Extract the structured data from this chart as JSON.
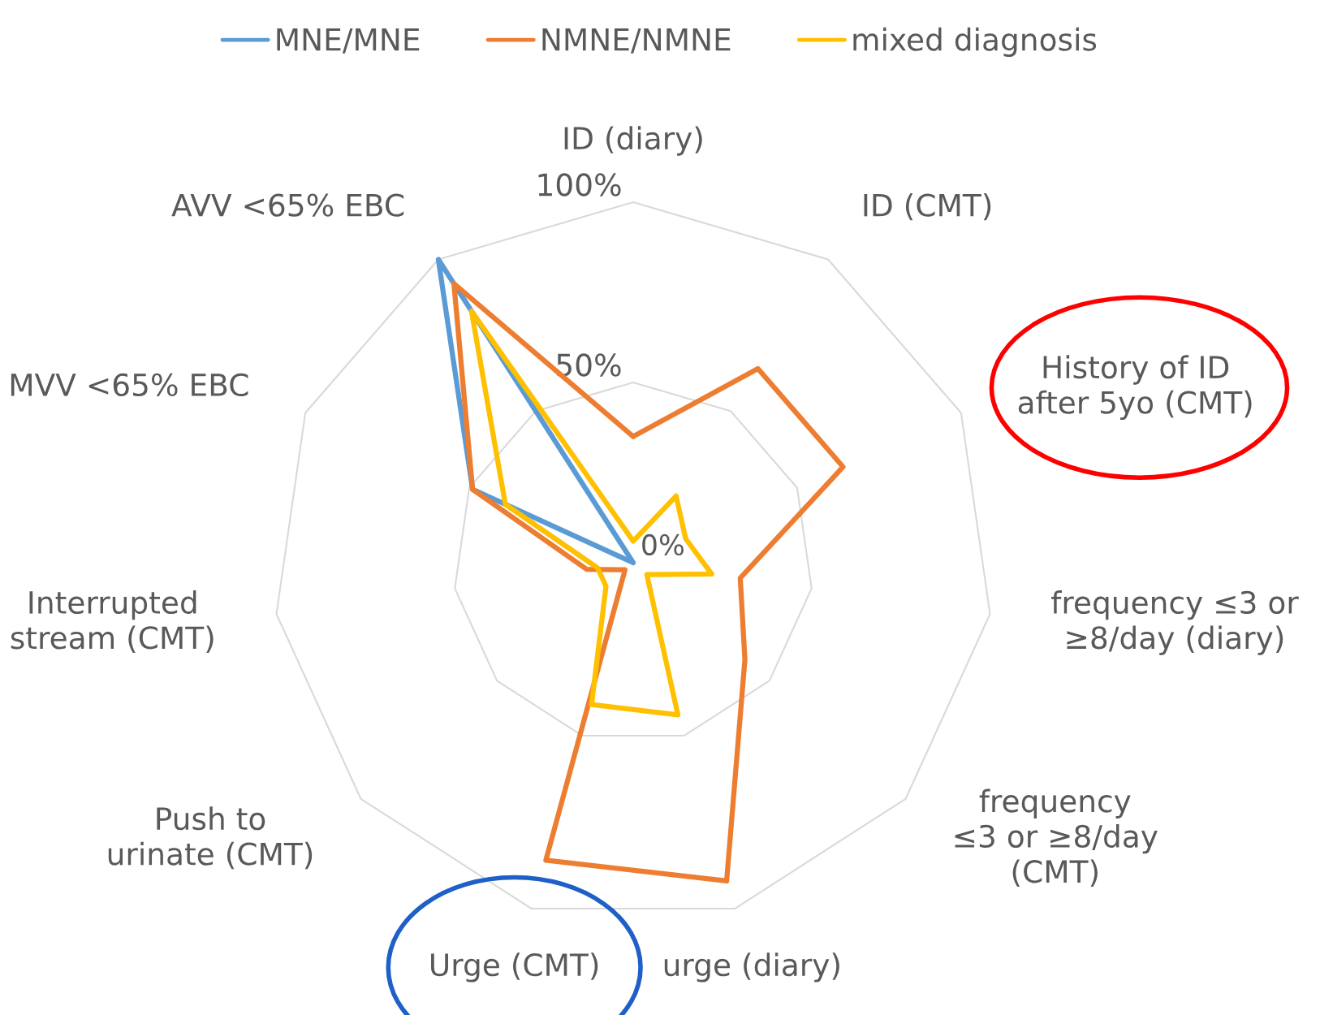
{
  "chart_data": {
    "type": "radar",
    "categories": [
      "ID (diary)",
      "ID (CMT)",
      "History of ID\nafter 5yo (CMT)",
      "frequency ≤3 or\n≥8/day (diary)",
      "frequency\n≤3 or ≥8/day\n(CMT)",
      "urge (diary)",
      "Urge (CMT)",
      "Push to\nurinate (CMT)",
      "Interrupted\nstream (CMT)",
      "MVV <65% EBC",
      "AVV <65% EBC"
    ],
    "series": [
      {
        "name": "MNE/MNE",
        "color": "#5b9bd5",
        "values": [
          0,
          0,
          0,
          0,
          0,
          0,
          0,
          0,
          0,
          49,
          100
        ]
      },
      {
        "name": "NMNE/NMNE",
        "color": "#ed7d31",
        "values": [
          35,
          64,
          64,
          30,
          41,
          92,
          86,
          3,
          13,
          49,
          92
        ]
      },
      {
        "name": "mixed diagnosis",
        "color": "#ffc000",
        "values": [
          6,
          22,
          16,
          22,
          5,
          44,
          41,
          10,
          10,
          39,
          83
        ]
      }
    ],
    "ylim": [
      0,
      100
    ],
    "yticks": [
      {
        "value": 0,
        "label": "0%"
      },
      {
        "value": 50,
        "label": "50%"
      },
      {
        "value": 100,
        "label": "100%"
      }
    ],
    "grid": true,
    "legend": "top"
  }
}
